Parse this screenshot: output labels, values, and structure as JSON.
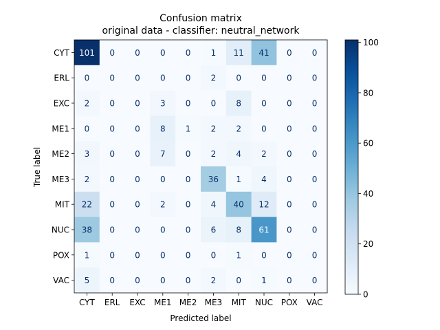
{
  "chart_data": {
    "type": "heatmap",
    "title": "Confusion matrix",
    "subtitle": "original data - classifier: neutral_network",
    "xlabel": "Predicted label",
    "ylabel": "True label",
    "x_categories": [
      "CYT",
      "ERL",
      "EXC",
      "ME1",
      "ME2",
      "ME3",
      "MIT",
      "NUC",
      "POX",
      "VAC"
    ],
    "y_categories": [
      "CYT",
      "ERL",
      "EXC",
      "ME1",
      "ME2",
      "ME3",
      "MIT",
      "NUC",
      "POX",
      "VAC"
    ],
    "values": [
      [
        101,
        0,
        0,
        0,
        0,
        1,
        11,
        41,
        0,
        0
      ],
      [
        0,
        0,
        0,
        0,
        0,
        2,
        0,
        0,
        0,
        0
      ],
      [
        2,
        0,
        0,
        3,
        0,
        0,
        8,
        0,
        0,
        0
      ],
      [
        0,
        0,
        0,
        8,
        1,
        2,
        2,
        0,
        0,
        0
      ],
      [
        3,
        0,
        0,
        7,
        0,
        2,
        4,
        2,
        0,
        0
      ],
      [
        2,
        0,
        0,
        0,
        0,
        36,
        1,
        4,
        0,
        0
      ],
      [
        22,
        0,
        0,
        2,
        0,
        4,
        40,
        12,
        0,
        0
      ],
      [
        38,
        0,
        0,
        0,
        0,
        6,
        8,
        61,
        0,
        0
      ],
      [
        1,
        0,
        0,
        0,
        0,
        0,
        1,
        0,
        0,
        0
      ],
      [
        5,
        0,
        0,
        0,
        0,
        2,
        0,
        1,
        0,
        0
      ]
    ],
    "colormap": "Blues",
    "vmin": 0,
    "vmax": 101,
    "colorbar_ticks": [
      0,
      20,
      40,
      60,
      80,
      100
    ]
  }
}
